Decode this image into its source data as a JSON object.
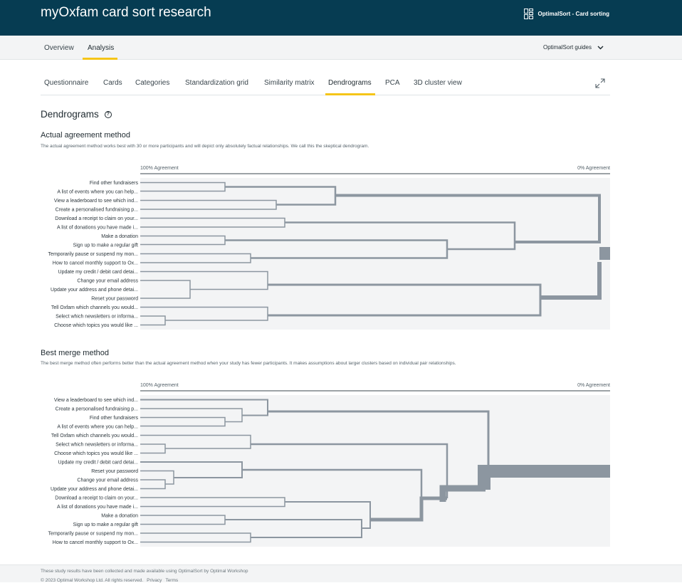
{
  "header": {
    "title": "myOxfam card sort research",
    "product": "OptimalSort - Card sorting",
    "product_icon": "grid-layout-icon"
  },
  "subnav": {
    "tabs": [
      "Overview",
      "Analysis"
    ],
    "active": "Analysis",
    "guides_label": "OptimalSort guides"
  },
  "analysis_tabs": {
    "items": [
      "Questionnaire",
      "Cards",
      "Categories",
      "Standardization grid",
      "Similarity matrix",
      "Dendrograms",
      "PCA",
      "3D cluster view"
    ],
    "active": "Dendrograms"
  },
  "page": {
    "title": "Dendrograms"
  },
  "actual_agreement": {
    "title": "Actual agreement method",
    "description": "The actual agreement method works best with 30 or more participants and will depict only absolutely factual relationships. We call this the skeptical dendrogram.",
    "axis_left": "100% Agreement",
    "axis_right": "0% Agreement",
    "cards": [
      "Find other fundraisers",
      "A list of events where you can help...",
      "View a leaderboard to see which ind...",
      "Create a personalised fundraising p...",
      "Download a receipt to claim on your...",
      "A list of donations you have made i...",
      "Make a donation",
      "Sign up to make a regular gift",
      "Temporarily pause or suspend my mon...",
      "How to cancel monthly support to Ox...",
      "Update my credit / debit card detai...",
      "Change your email address",
      "Update your address and phone detai...",
      "Reset your password",
      "Tell Oxfam which channels you would...",
      "Select which newsletters or informa...",
      "Choose which topics you would like ..."
    ]
  },
  "best_merge": {
    "title": "Best merge method",
    "description": "The best merge method often performs better than the actual agreement method when your study has fewer participants. It makes assumptions about larger clusters based on individual pair relationships.",
    "axis_left": "100% Agreement",
    "axis_right": "0% Agreement",
    "cards": [
      "View a leaderboard to see which ind...",
      "Create a personalised fundraising p...",
      "Find other fundraisers",
      "A list of events where you can help...",
      "Tell Oxfam which channels you would...",
      "Select which newsletters or informa...",
      "Choose which topics you would like ...",
      "Update my credit / debit card detai...",
      "Reset your password",
      "Change your email address",
      "Update your address and phone detai...",
      "Download a receipt to claim on your...",
      "A list of donations you have made i...",
      "Make a donation",
      "Sign up to make a regular gift",
      "Temporarily pause or suspend my mon...",
      "How to cancel monthly support to Ox..."
    ]
  },
  "footer": {
    "line1": "These study results have been collected and made available using OptimalSort by Optimal Workshop",
    "copyright": "© 2023 Optimal Workshop Ltd. All rights reserved.",
    "privacy": "Privacy",
    "terms": "Terms"
  },
  "colors": {
    "header_bg": "#063c52",
    "accent": "#f5c518",
    "line": "#8c96a0",
    "plot_bg": "#f3f4f5"
  }
}
